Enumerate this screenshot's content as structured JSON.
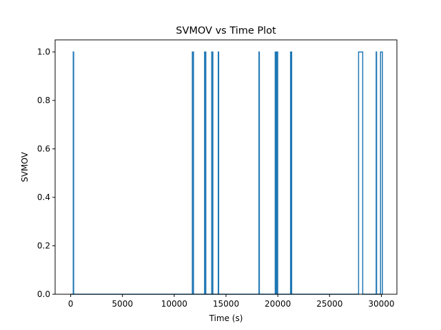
{
  "chart_data": {
    "type": "line",
    "title": "SVMOV vs Time Plot",
    "xlabel": "Time (s)",
    "ylabel": "SVMOV",
    "xlim": [
      -1500,
      31500
    ],
    "ylim": [
      0,
      1.05
    ],
    "xticks": [
      0,
      5000,
      10000,
      15000,
      20000,
      25000,
      30000
    ],
    "xtick_labels": [
      "0",
      "5000",
      "10000",
      "15000",
      "20000",
      "25000",
      "30000"
    ],
    "yticks": [
      0.0,
      0.2,
      0.4,
      0.6,
      0.8,
      1.0
    ],
    "ytick_labels": [
      "0.0",
      "0.2",
      "0.4",
      "0.6",
      "0.8",
      "1.0"
    ],
    "grid": false,
    "series_color": "#1f77b4",
    "series": [
      {
        "drawstyle": "steps",
        "x": [
          0,
          250,
          290,
          11750,
          11800,
          11820,
          11860,
          12930,
          12970,
          13000,
          13050,
          13620,
          13660,
          13690,
          13730,
          14250,
          14290,
          18180,
          18220,
          19750,
          19790,
          19810,
          19850,
          19880,
          19920,
          19950,
          19990,
          21230,
          21270,
          21300,
          21340,
          27800,
          28200,
          29500,
          29540,
          29920,
          30100,
          30150
        ],
        "y": [
          0,
          1,
          0,
          1,
          0,
          1,
          0,
          1,
          0,
          1,
          0,
          1,
          0,
          1,
          0,
          1,
          0,
          1,
          0,
          1,
          0,
          1,
          0,
          1,
          0,
          1,
          0,
          1,
          0,
          1,
          0,
          1,
          0,
          1,
          0,
          1,
          0,
          0
        ]
      }
    ]
  }
}
